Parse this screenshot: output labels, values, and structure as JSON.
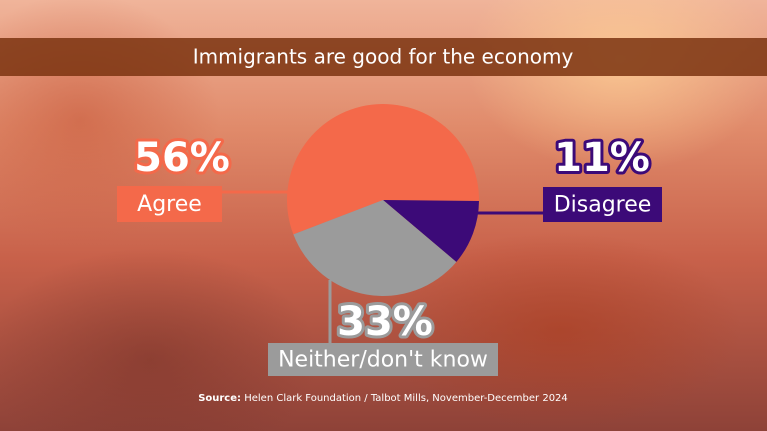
{
  "chart_data": {
    "type": "pie",
    "title": "Immigrants are good for the economy",
    "categories": [
      "Agree",
      "Disagree",
      "Neither/don't know"
    ],
    "values": [
      56,
      11,
      33
    ],
    "value_labels": [
      "56%",
      "11%",
      "33%"
    ],
    "colors": [
      "#f4694a",
      "#3c0a78",
      "#9b9b9b"
    ],
    "source_label": "Source:",
    "source": "Helen Clark Foundation / Talbot Mills, November-December 2024"
  }
}
